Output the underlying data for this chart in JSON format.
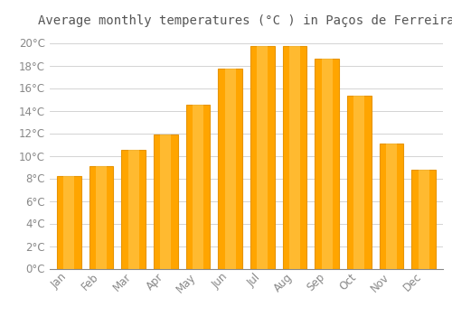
{
  "title": "Average monthly temperatures (°C ) in Paços de Ferreira",
  "months": [
    "Jan",
    "Feb",
    "Mar",
    "Apr",
    "May",
    "Jun",
    "Jul",
    "Aug",
    "Sep",
    "Oct",
    "Nov",
    "Dec"
  ],
  "temperatures": [
    8.2,
    9.1,
    10.5,
    11.9,
    14.5,
    17.7,
    19.7,
    19.7,
    18.6,
    15.3,
    11.1,
    8.8
  ],
  "bar_color": "#FFA500",
  "bar_edge_color": "#E89400",
  "background_color": "#FFFFFF",
  "grid_color": "#CCCCCC",
  "text_color": "#888888",
  "ylim": [
    0,
    21
  ],
  "ytick_step": 2,
  "title_fontsize": 10,
  "tick_fontsize": 8.5
}
